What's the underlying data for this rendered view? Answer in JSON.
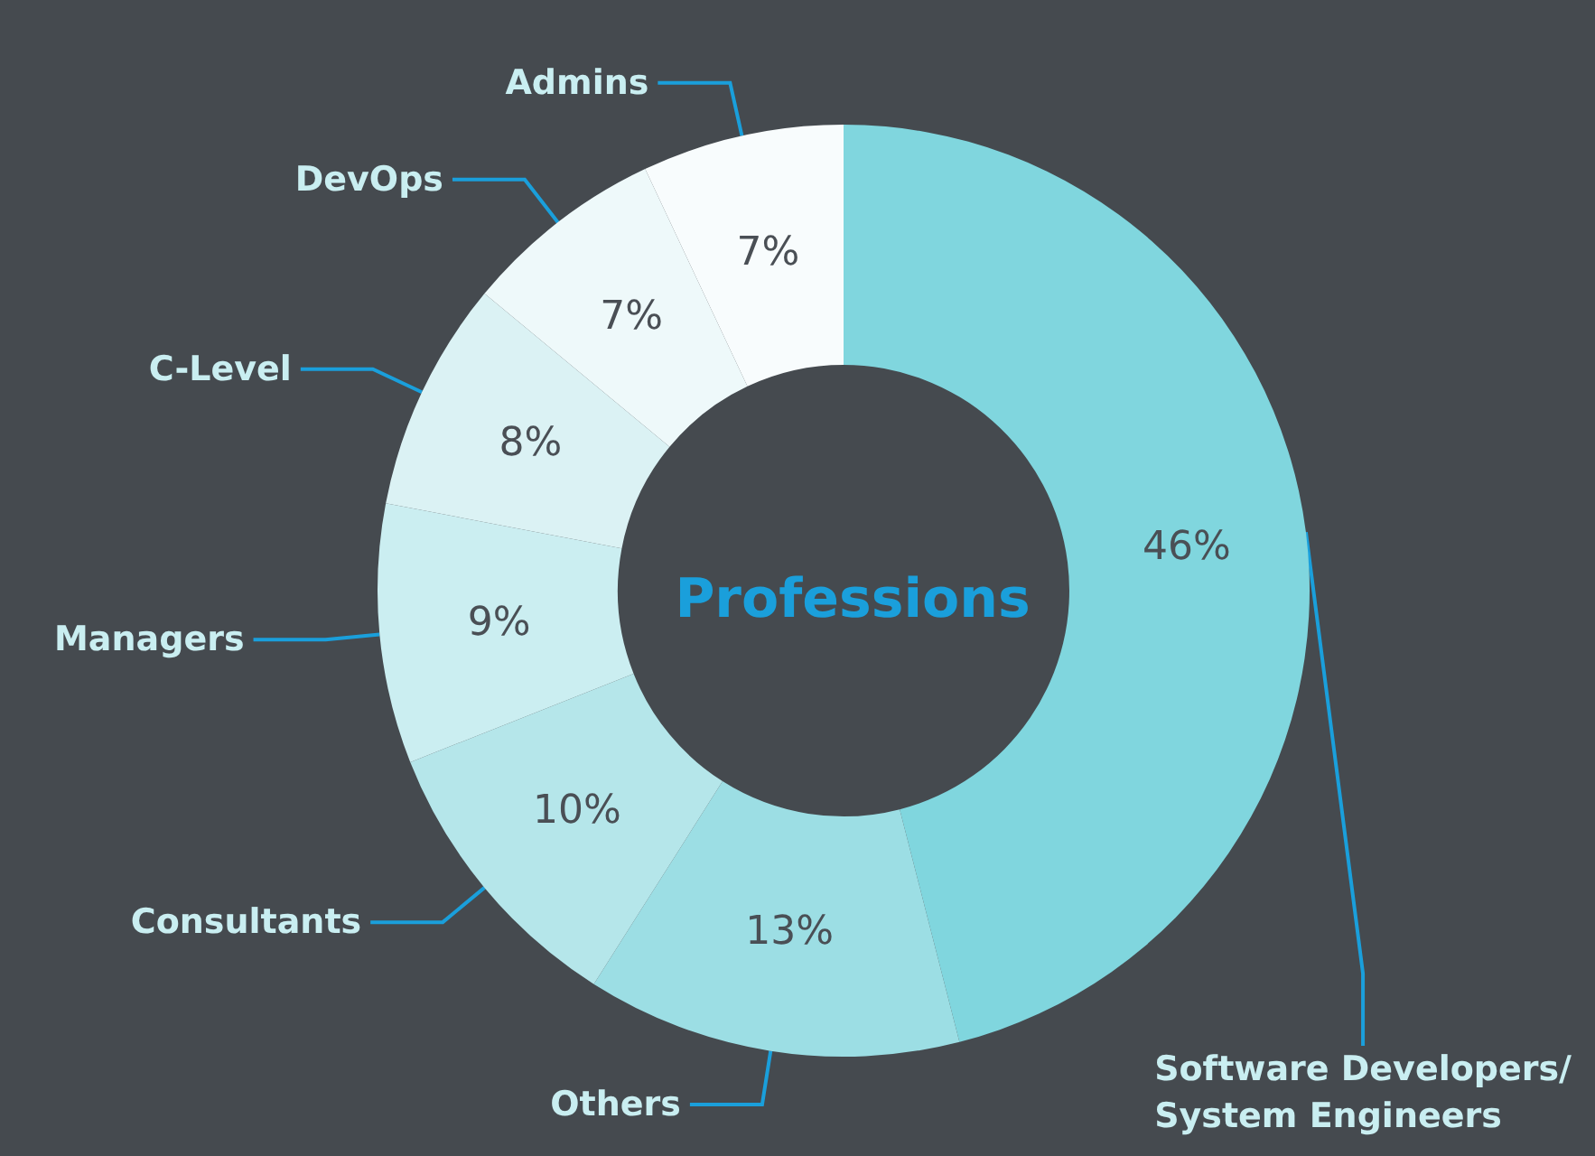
{
  "chart_data": {
    "type": "donut",
    "title": "Professions",
    "categories": [
      "Software Developers/\nSystem Engineers",
      "Others",
      "Consultants",
      "Managers",
      "C-Level",
      "DevOps",
      "Admins"
    ],
    "values": [
      46,
      13,
      10,
      9,
      8,
      7,
      7
    ],
    "value_labels": [
      "46%",
      "13%",
      "10%",
      "9%",
      "8%",
      "7%",
      "7%"
    ],
    "colors": [
      "#80d6de",
      "#9cdee4",
      "#b5e6ea",
      "#cbeef1",
      "#dbf2f4",
      "#eef9fa",
      "#f8fcfd"
    ],
    "legend": false
  }
}
